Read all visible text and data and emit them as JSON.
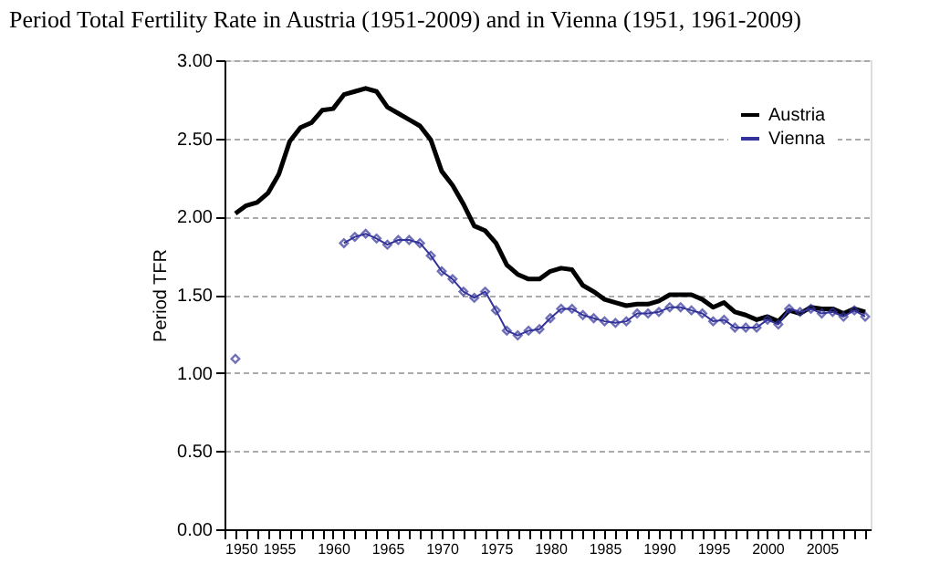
{
  "chart_data": {
    "type": "line",
    "title": "Period Total Fertility Rate in Austria (1951-2009) and in Vienna (1951, 1961-2009)",
    "ylabel": "Period TFR",
    "x": [
      1951,
      1952,
      1953,
      1954,
      1955,
      1956,
      1957,
      1958,
      1959,
      1960,
      1961,
      1962,
      1963,
      1964,
      1965,
      1966,
      1967,
      1968,
      1969,
      1970,
      1971,
      1972,
      1973,
      1974,
      1975,
      1976,
      1977,
      1978,
      1979,
      1980,
      1981,
      1982,
      1983,
      1984,
      1985,
      1986,
      1987,
      1988,
      1989,
      1990,
      1991,
      1992,
      1993,
      1994,
      1995,
      1996,
      1997,
      1998,
      1999,
      2000,
      2001,
      2002,
      2003,
      2004,
      2005,
      2006,
      2007,
      2008,
      2009
    ],
    "series": [
      {
        "name": "Austria",
        "color": "#000000",
        "marker": "none",
        "values": [
          2.02,
          2.07,
          2.09,
          2.15,
          2.27,
          2.48,
          2.57,
          2.6,
          2.68,
          2.69,
          2.78,
          2.8,
          2.82,
          2.8,
          2.7,
          2.66,
          2.62,
          2.58,
          2.49,
          2.29,
          2.2,
          2.08,
          1.94,
          1.91,
          1.83,
          1.69,
          1.63,
          1.6,
          1.6,
          1.65,
          1.67,
          1.66,
          1.56,
          1.52,
          1.47,
          1.45,
          1.43,
          1.44,
          1.44,
          1.46,
          1.5,
          1.5,
          1.5,
          1.47,
          1.42,
          1.45,
          1.39,
          1.37,
          1.34,
          1.36,
          1.33,
          1.4,
          1.38,
          1.42,
          1.41,
          1.41,
          1.38,
          1.41,
          1.39
        ]
      },
      {
        "name": "Vienna",
        "color": "#333399",
        "marker": "diamond",
        "values": [
          1.09,
          null,
          null,
          null,
          null,
          null,
          null,
          null,
          null,
          null,
          1.83,
          1.87,
          1.89,
          1.86,
          1.82,
          1.85,
          1.85,
          1.83,
          1.75,
          1.65,
          1.6,
          1.52,
          1.48,
          1.52,
          1.4,
          1.27,
          1.24,
          1.27,
          1.28,
          1.35,
          1.41,
          1.41,
          1.37,
          1.35,
          1.33,
          1.32,
          1.33,
          1.38,
          1.38,
          1.39,
          1.42,
          1.42,
          1.4,
          1.38,
          1.33,
          1.34,
          1.29,
          1.29,
          1.29,
          1.34,
          1.31,
          1.41,
          1.39,
          1.41,
          1.38,
          1.39,
          1.36,
          1.4,
          1.36
        ]
      }
    ],
    "xlim": [
      1950,
      2009.5
    ],
    "xticks": [
      1950,
      {
        "value": 1951,
        "label": null
      },
      {
        "value": 1952,
        "label": null
      },
      {
        "value": 1953,
        "label": null
      },
      {
        "value": 1954,
        "label": null
      },
      1955,
      {
        "value": 1956,
        "label": null
      },
      {
        "value": 1957,
        "label": null
      },
      {
        "value": 1958,
        "label": null
      },
      {
        "value": 1959,
        "label": null
      },
      1960,
      {
        "value": 1961,
        "label": null
      },
      {
        "value": 1962,
        "label": null
      },
      {
        "value": 1963,
        "label": null
      },
      {
        "value": 1964,
        "label": null
      },
      1965,
      {
        "value": 1966,
        "label": null
      },
      {
        "value": 1967,
        "label": null
      },
      {
        "value": 1968,
        "label": null
      },
      {
        "value": 1969,
        "label": null
      },
      1970,
      {
        "value": 1971,
        "label": null
      },
      {
        "value": 1972,
        "label": null
      },
      {
        "value": 1973,
        "label": null
      },
      {
        "value": 1974,
        "label": null
      },
      1975,
      {
        "value": 1976,
        "label": null
      },
      {
        "value": 1977,
        "label": null
      },
      {
        "value": 1978,
        "label": null
      },
      {
        "value": 1979,
        "label": null
      },
      1980,
      {
        "value": 1981,
        "label": null
      },
      {
        "value": 1982,
        "label": null
      },
      {
        "value": 1983,
        "label": null
      },
      {
        "value": 1984,
        "label": null
      },
      1985,
      {
        "value": 1986,
        "label": null
      },
      {
        "value": 1987,
        "label": null
      },
      {
        "value": 1988,
        "label": null
      },
      {
        "value": 1989,
        "label": null
      },
      1990,
      {
        "value": 1991,
        "label": null
      },
      {
        "value": 1992,
        "label": null
      },
      {
        "value": 1993,
        "label": null
      },
      {
        "value": 1994,
        "label": null
      },
      1995,
      {
        "value": 1996,
        "label": null
      },
      {
        "value": 1997,
        "label": null
      },
      {
        "value": 1998,
        "label": null
      },
      {
        "value": 1999,
        "label": null
      },
      2000,
      {
        "value": 2001,
        "label": null
      },
      {
        "value": 2002,
        "label": null
      },
      {
        "value": 2003,
        "label": null
      },
      {
        "value": 2004,
        "label": null
      },
      2005,
      {
        "value": 2006,
        "label": null
      },
      {
        "value": 2007,
        "label": null
      },
      {
        "value": 2008,
        "label": null
      },
      {
        "value": 2009,
        "label": null
      }
    ],
    "ylim": [
      0,
      3
    ],
    "yticks": [
      {
        "value": 0,
        "label": "0.00"
      },
      {
        "value": 0.5,
        "label": "0.50"
      },
      {
        "value": 1,
        "label": "1.00"
      },
      {
        "value": 1.5,
        "label": "1.50"
      },
      {
        "value": 2,
        "label": "2.00"
      },
      {
        "value": 2.5,
        "label": "2.50"
      },
      {
        "value": 3,
        "label": "3.00"
      }
    ],
    "grid": "y",
    "legend": "top right",
    "line_style": "solid"
  }
}
